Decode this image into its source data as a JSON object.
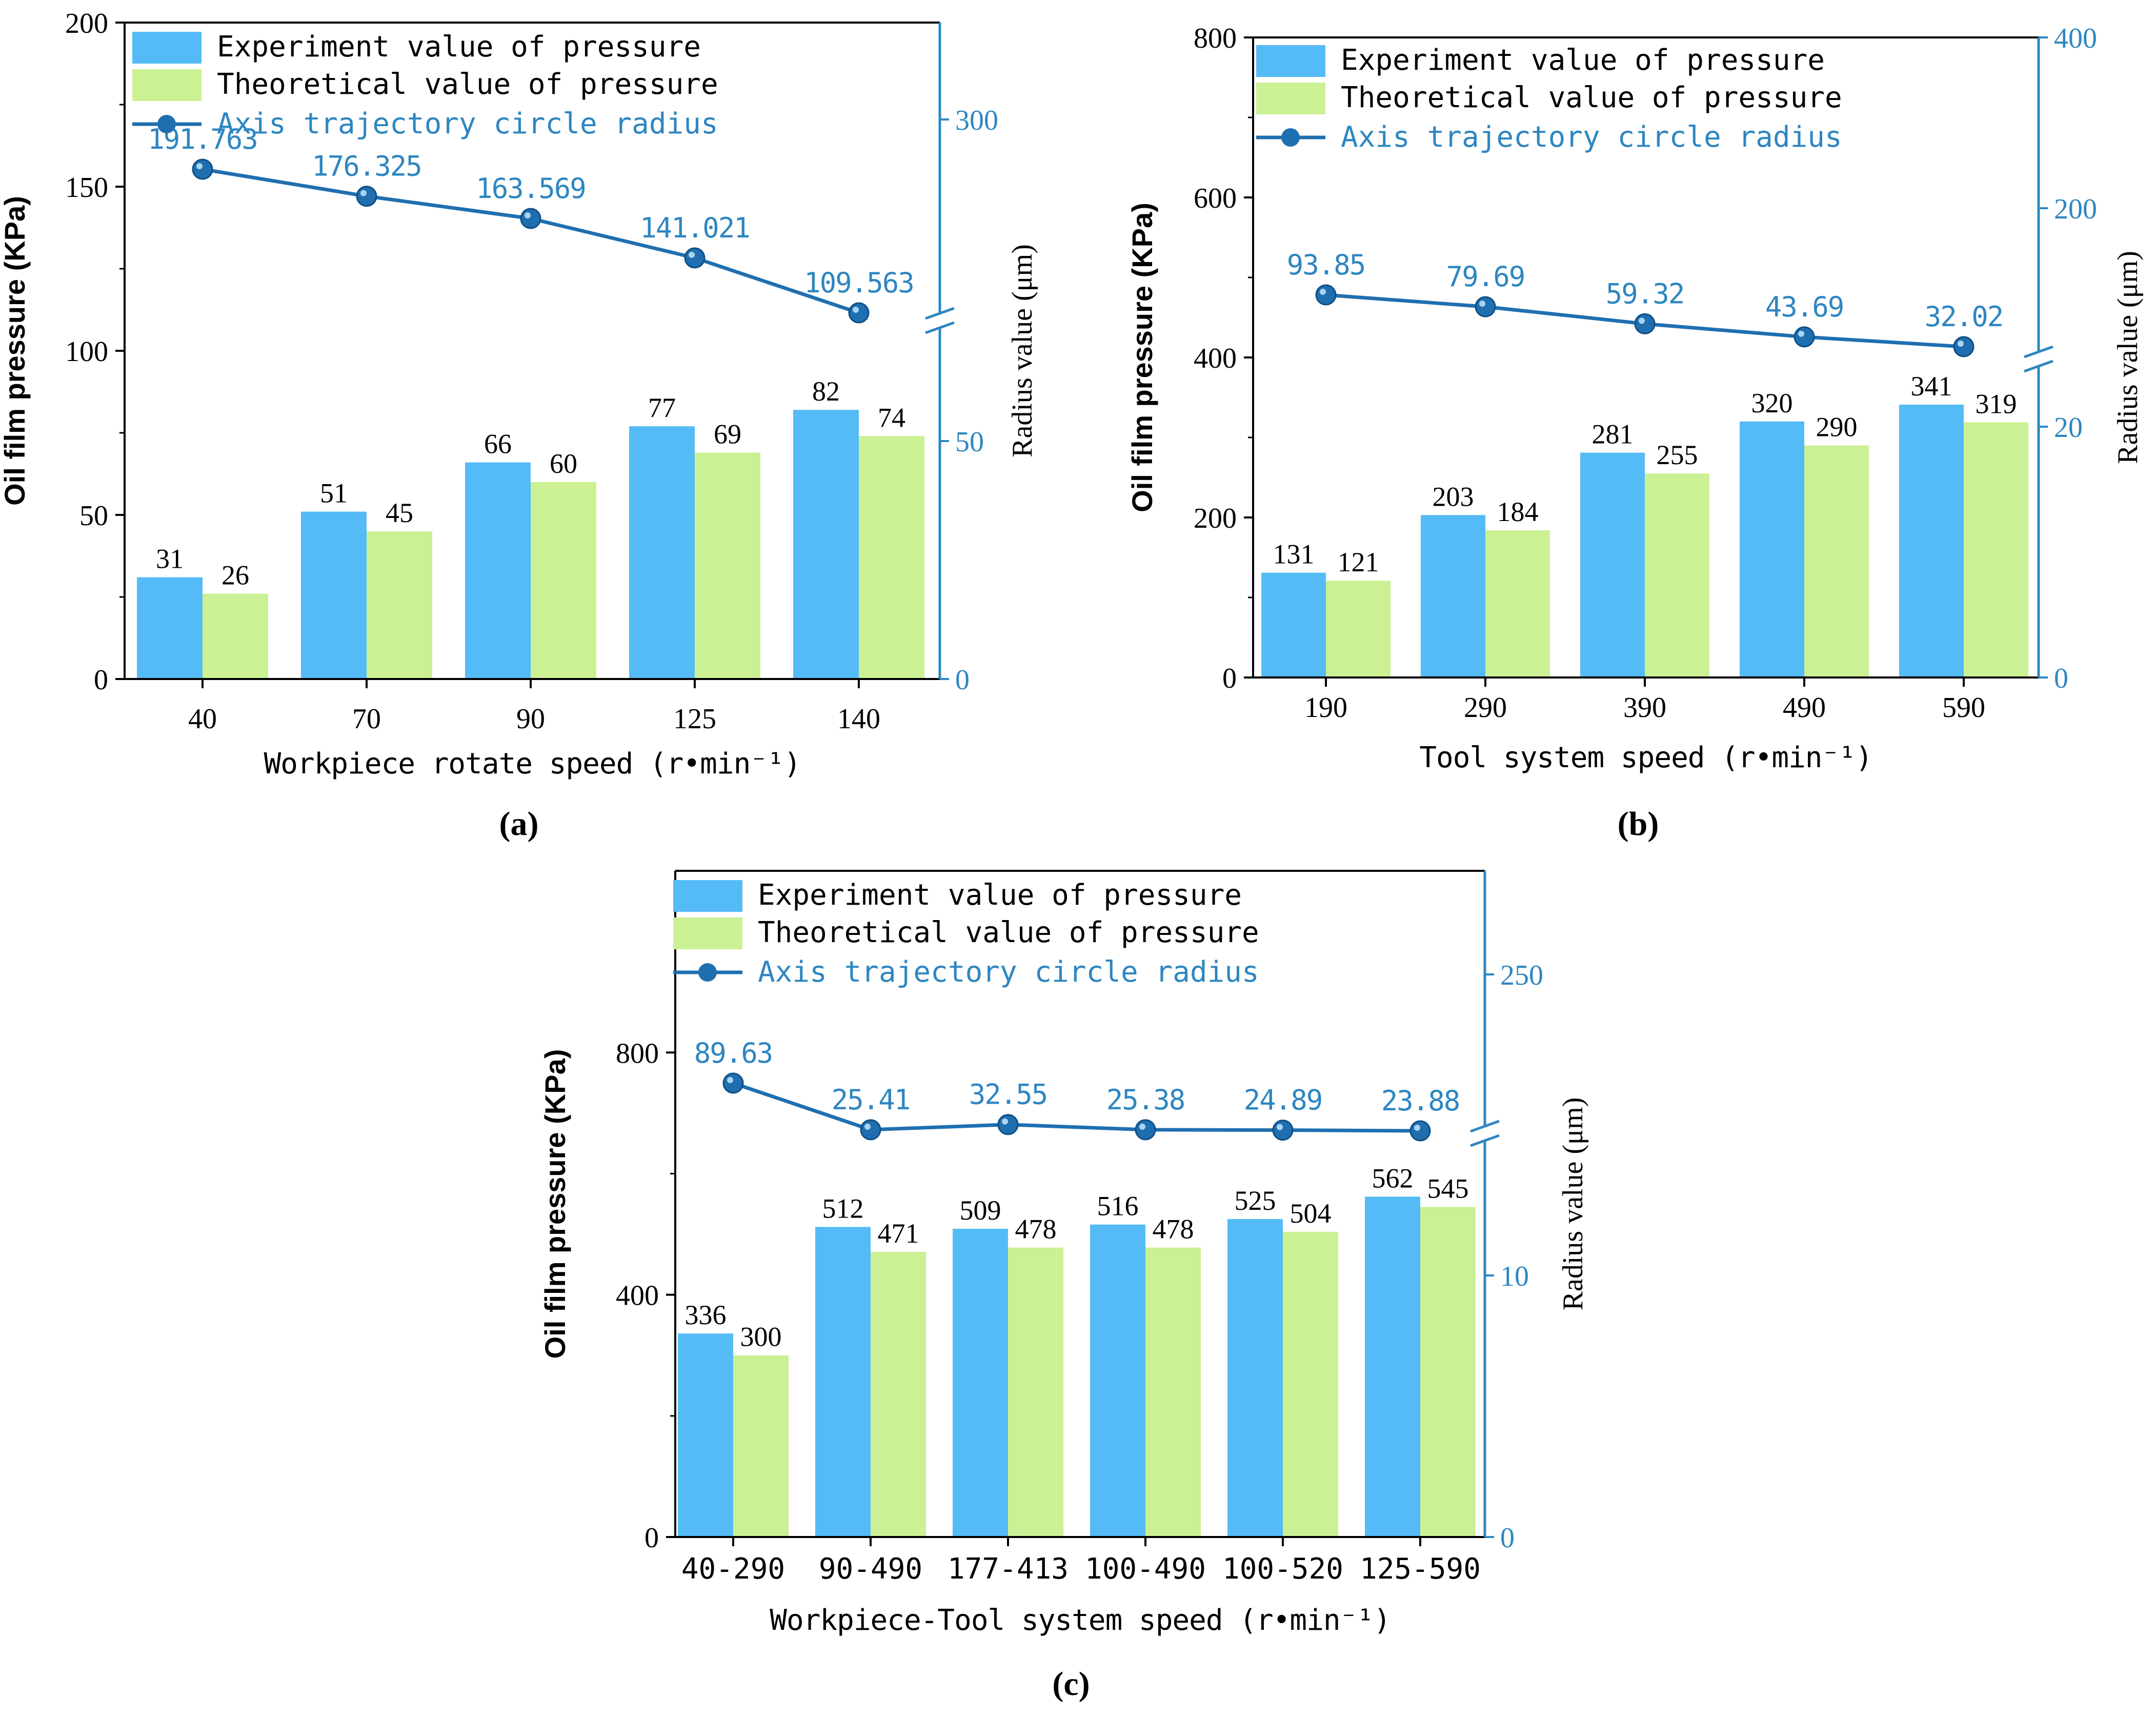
{
  "colors": {
    "experiment": "#55bbf7",
    "theoretical": "#ccf094",
    "line": "#1f6fb0",
    "right_axis": "#2e86c1",
    "axis": "#000000"
  },
  "chart_data": [
    {
      "panel": "a",
      "type": "bar",
      "panel_label": "(a)",
      "xlabel": "Workpiece rotate speed (r•min⁻¹)",
      "ylabel": "Oil film pressure (KPa)",
      "y2label": "Radius value (μm)",
      "categories": [
        "40",
        "70",
        "90",
        "125",
        "140"
      ],
      "ylim": [
        0,
        200
      ],
      "yticks": [
        "0",
        "50",
        "100",
        "150",
        "200"
      ],
      "y2ticks": [
        "0",
        "50",
        "300"
      ],
      "series": [
        {
          "name": "Experiment value of pressure",
          "values": [
            31,
            51,
            66,
            77,
            82
          ],
          "labels": [
            "31",
            "51",
            "66",
            "77",
            "82"
          ]
        },
        {
          "name": "Theoretical value of pressure",
          "values": [
            26,
            45,
            60,
            69,
            74
          ],
          "labels": [
            "26",
            "45",
            "60",
            "69",
            "74"
          ]
        },
        {
          "name": "Axis trajectory circle radius",
          "values": [
            191.763,
            176.325,
            163.569,
            141.021,
            109.563
          ],
          "labels": [
            "191.763",
            "176.325",
            "163.569",
            "141.021",
            "109.563"
          ]
        }
      ]
    },
    {
      "panel": "b",
      "type": "bar",
      "panel_label": "(b)",
      "xlabel": "Tool system speed (r•min⁻¹)",
      "ylabel": "Oil film pressure (KPa)",
      "y2label": "Radius value (μm)",
      "categories": [
        "190",
        "290",
        "390",
        "490",
        "590"
      ],
      "ylim": [
        0,
        800
      ],
      "yticks": [
        "0",
        "200",
        "400",
        "600",
        "800"
      ],
      "y2ticks": [
        "0",
        "20",
        "200",
        "400"
      ],
      "series": [
        {
          "name": "Experiment value of pressure",
          "values": [
            131,
            203,
            281,
            320,
            341
          ],
          "labels": [
            "131",
            "203",
            "281",
            "320",
            "341"
          ]
        },
        {
          "name": "Theoretical value of pressure",
          "values": [
            121,
            184,
            255,
            290,
            319
          ],
          "labels": [
            "121",
            "184",
            "255",
            "290",
            "319"
          ]
        },
        {
          "name": "Axis trajectory circle radius",
          "values": [
            93.85,
            79.69,
            59.32,
            43.69,
            32.02
          ],
          "labels": [
            "93.85",
            "79.69",
            "59.32",
            "43.69",
            "32.02"
          ]
        }
      ]
    },
    {
      "panel": "c",
      "type": "bar",
      "panel_label": "(c)",
      "xlabel": "Workpiece-Tool system speed (r•min⁻¹)",
      "ylabel": "Oil film pressure (KPa)",
      "y2label": "Radius value (μm)",
      "categories": [
        "40-290",
        "90-490",
        "177-413",
        "100-490",
        "100-520",
        "125-590"
      ],
      "ylim": [
        0,
        1100
      ],
      "yticks": [
        "0",
        "400",
        "800"
      ],
      "y2ticks": [
        "0",
        "10",
        "250"
      ],
      "series": [
        {
          "name": "Experiment value of pressure",
          "values": [
            336,
            512,
            509,
            516,
            525,
            562
          ],
          "labels": [
            "336",
            "512",
            "509",
            "516",
            "525",
            "562"
          ]
        },
        {
          "name": "Theoretical value of pressure",
          "values": [
            300,
            471,
            478,
            478,
            504,
            545
          ],
          "labels": [
            "300",
            "471",
            "478",
            "478",
            "504",
            "545"
          ]
        },
        {
          "name": "Axis trajectory circle radius",
          "values": [
            89.63,
            25.41,
            32.55,
            25.38,
            24.89,
            23.88
          ],
          "labels": [
            "89.63",
            "25.41",
            "32.55",
            "25.38",
            "24.89",
            "23.88"
          ]
        }
      ]
    }
  ]
}
